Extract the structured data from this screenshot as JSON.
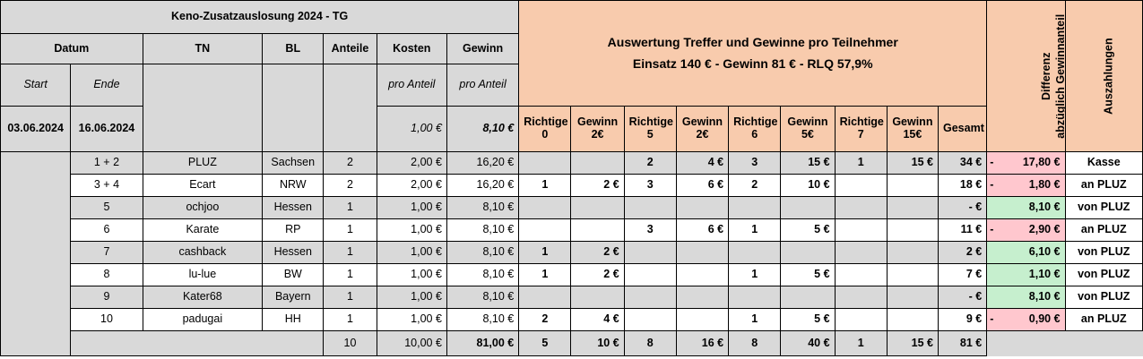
{
  "title": "Keno-Zusatzauslosung 2024 - TG",
  "headers": {
    "datum": "Datum",
    "tn": "TN",
    "bl": "BL",
    "anteile": "Anteile",
    "kosten": "Kosten",
    "gewinn": "Gewinn",
    "start": "Start",
    "ende": "Ende",
    "pro_anteil_kosten": "pro Anteil",
    "pro_anteil_gewinn": "pro Anteil",
    "auswertung_line1": "Auswertung Treffer und  Gewinne pro Teilnehmer",
    "auswertung_line2": "Einsatz 140 € - Gewinn 81 € - RLQ 57,9%",
    "differenz_line1": "Differenz",
    "differenz_line2": "abzüglich Gewinnanteil",
    "auszahlungen": "Auszahlungen",
    "gesamt": "Gesamt"
  },
  "period": {
    "start": "03.06.2024",
    "end": "16.06.2024",
    "cost_per_share": "1,00 €",
    "win_per_share": "8,10 €"
  },
  "sub_headers": [
    {
      "top": "Richtige",
      "bottom": "0"
    },
    {
      "top": "Gewinn",
      "bottom": "2€"
    },
    {
      "top": "Richtige",
      "bottom": "5"
    },
    {
      "top": "Gewinn",
      "bottom": "2€"
    },
    {
      "top": "Richtige",
      "bottom": "6"
    },
    {
      "top": "Gewinn",
      "bottom": "5€"
    },
    {
      "top": "Richtige",
      "bottom": "7"
    },
    {
      "top": "Gewinn",
      "bottom": "15€"
    }
  ],
  "rows": [
    {
      "nr": "1 + 2",
      "tn": "PLUZ",
      "bl": "Sachsen",
      "anteile": "2",
      "kosten": "2,00 €",
      "gewinn": "16,20 €",
      "h0": "",
      "g2": "",
      "h5": "2",
      "g5": "4 €",
      "h6": "3",
      "g6": "15 €",
      "h7": "1",
      "g7": "15 €",
      "gesamt": "34 €",
      "diff_sign": "-",
      "diff": "17,80 €",
      "diff_type": "neg",
      "aus": "Kasse"
    },
    {
      "nr": "3 + 4",
      "tn": "Ecart",
      "bl": "NRW",
      "anteile": "2",
      "kosten": "2,00 €",
      "gewinn": "16,20 €",
      "h0": "1",
      "g2": "2 €",
      "h5": "3",
      "g5": "6 €",
      "h6": "2",
      "g6": "10 €",
      "h7": "",
      "g7": "",
      "gesamt": "18 €",
      "diff_sign": "-",
      "diff": "1,80 €",
      "diff_type": "neg",
      "aus": "an PLUZ"
    },
    {
      "nr": "5",
      "tn": "ochjoo",
      "bl": "Hessen",
      "anteile": "1",
      "kosten": "1,00 €",
      "gewinn": "8,10 €",
      "h0": "",
      "g2": "",
      "h5": "",
      "g5": "",
      "h6": "",
      "g6": "",
      "h7": "",
      "g7": "",
      "gesamt": "- €",
      "diff_sign": "",
      "diff": "8,10 €",
      "diff_type": "pos",
      "aus": "von PLUZ"
    },
    {
      "nr": "6",
      "tn": "Karate",
      "bl": "RP",
      "anteile": "1",
      "kosten": "1,00 €",
      "gewinn": "8,10 €",
      "h0": "",
      "g2": "",
      "h5": "3",
      "g5": "6 €",
      "h6": "1",
      "g6": "5 €",
      "h7": "",
      "g7": "",
      "gesamt": "11 €",
      "diff_sign": "-",
      "diff": "2,90 €",
      "diff_type": "neg",
      "aus": "an PLUZ"
    },
    {
      "nr": "7",
      "tn": "cashback",
      "bl": "Hessen",
      "anteile": "1",
      "kosten": "1,00 €",
      "gewinn": "8,10 €",
      "h0": "1",
      "g2": "2 €",
      "h5": "",
      "g5": "",
      "h6": "",
      "g6": "",
      "h7": "",
      "g7": "",
      "gesamt": "2 €",
      "diff_sign": "",
      "diff": "6,10 €",
      "diff_type": "pos",
      "aus": "von PLUZ"
    },
    {
      "nr": "8",
      "tn": "lu-lue",
      "bl": "BW",
      "anteile": "1",
      "kosten": "1,00 €",
      "gewinn": "8,10 €",
      "h0": "1",
      "g2": "2 €",
      "h5": "",
      "g5": "",
      "h6": "1",
      "g6": "5 €",
      "h7": "",
      "g7": "",
      "gesamt": "7 €",
      "diff_sign": "",
      "diff": "1,10 €",
      "diff_type": "pos",
      "aus": "von PLUZ"
    },
    {
      "nr": "9",
      "tn": "Kater68",
      "bl": "Bayern",
      "anteile": "1",
      "kosten": "1,00 €",
      "gewinn": "8,10 €",
      "h0": "",
      "g2": "",
      "h5": "",
      "g5": "",
      "h6": "",
      "g6": "",
      "h7": "",
      "g7": "",
      "gesamt": "- €",
      "diff_sign": "",
      "diff": "8,10 €",
      "diff_type": "pos",
      "aus": "von PLUZ"
    },
    {
      "nr": "10",
      "tn": "padugai",
      "bl": "HH",
      "anteile": "1",
      "kosten": "1,00 €",
      "gewinn": "8,10 €",
      "h0": "2",
      "g2": "4 €",
      "h5": "",
      "g5": "",
      "h6": "1",
      "g6": "5 €",
      "h7": "",
      "g7": "",
      "gesamt": "9 €",
      "diff_sign": "-",
      "diff": "0,90 €",
      "diff_type": "neg",
      "aus": "an PLUZ"
    }
  ],
  "totals": {
    "anteile": "10",
    "kosten": "10,00 €",
    "gewinn": "81,00 €",
    "h0": "5",
    "g2": "10 €",
    "h5": "8",
    "g5": "16 €",
    "h6": "8",
    "g6": "40 €",
    "h7": "1",
    "g7": "15 €",
    "gesamt": "81 €"
  },
  "colors": {
    "title": "#c55a11",
    "header_gray": "#d9d9d9",
    "header_peach": "#f8cbad",
    "negative_bg": "#ffc7ce",
    "negative_text": "#9c0006",
    "positive_bg": "#c6efce",
    "positive_text": "#006100"
  }
}
